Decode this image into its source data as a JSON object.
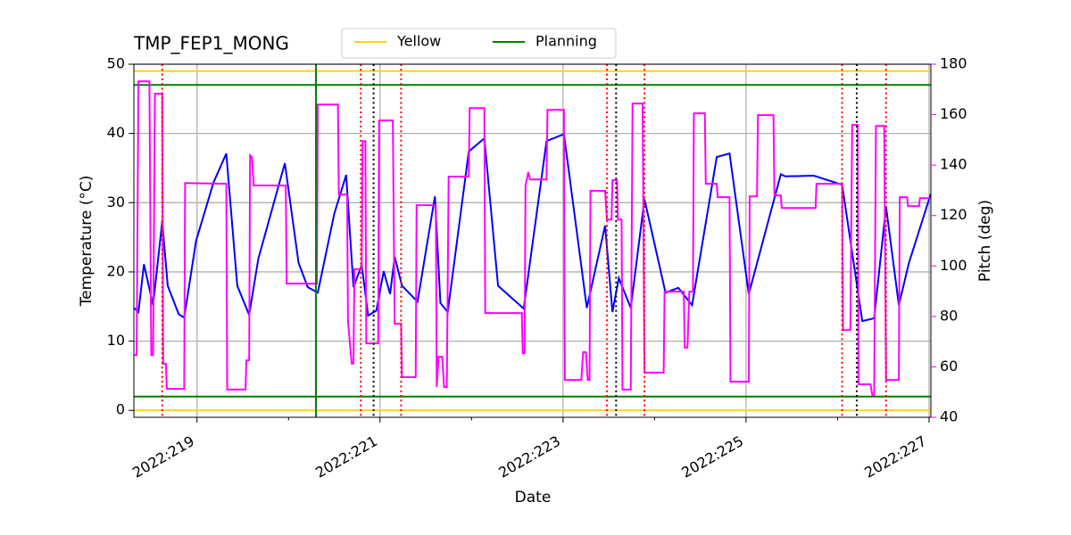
{
  "chart_data": {
    "type": "line",
    "title": "TMP_FEP1_MONG",
    "xlabel": "Date",
    "ylabel": "Temperature (°C)",
    "y2label": "Pitch (deg)",
    "y2color": "#ff00ff",
    "xlim": [
      218.31,
      227.02
    ],
    "ylim": [
      -1,
      50
    ],
    "y2lim": [
      40,
      180
    ],
    "xticks": [
      {
        "value": 219,
        "label": "2022:219"
      },
      {
        "value": 221,
        "label": "2022:221"
      },
      {
        "value": 223,
        "label": "2022:223"
      },
      {
        "value": 225,
        "label": "2022:225"
      },
      {
        "value": 227,
        "label": "2022:227"
      }
    ],
    "xminorticks": [
      220,
      222,
      224,
      226
    ],
    "yticks": [
      0,
      10,
      20,
      30,
      40,
      50
    ],
    "y2ticks": [
      40,
      60,
      80,
      100,
      120,
      140,
      160,
      180
    ],
    "grid": true,
    "legend": "upper center",
    "series": [
      {
        "color": "#0000ff",
        "x": [
          218.31,
          218.36,
          218.42,
          218.52,
          218.62,
          218.68,
          218.8,
          218.86,
          218.99,
          219.18,
          219.32,
          219.44,
          219.57,
          219.67,
          219.96,
          220.11,
          220.21,
          220.32,
          220.5,
          220.63,
          220.71,
          220.8,
          220.87,
          220.96,
          221.04,
          221.11,
          221.16,
          221.24,
          221.41,
          221.6,
          221.66,
          221.74,
          221.97,
          222.14,
          222.29,
          222.57,
          222.82,
          223.01,
          223.26,
          223.46,
          223.54,
          223.61,
          223.74,
          223.89,
          224.12,
          224.26,
          224.41,
          224.68,
          224.82,
          225.03,
          225.38,
          225.43,
          225.74,
          226.05,
          226.23,
          226.27,
          226.4,
          226.53,
          226.67,
          226.78,
          227.02
        ],
        "values": [
          14.8,
          14.2,
          21.1,
          15.2,
          27.3,
          18,
          13.9,
          13.4,
          24.5,
          32.9,
          37.1,
          18,
          13.8,
          21.9,
          35.7,
          21.3,
          17.8,
          17,
          28.4,
          34,
          17.8,
          21,
          13.7,
          14.4,
          20.1,
          16.8,
          22.2,
          18,
          15.7,
          30.9,
          15.5,
          14.2,
          37.4,
          39.3,
          18,
          14.7,
          38.9,
          39.9,
          14.8,
          26.7,
          14.2,
          19.1,
          14.8,
          30.5,
          17,
          17.7,
          15.2,
          36.6,
          37.1,
          16.8,
          34.1,
          33.8,
          33.9,
          32.6,
          16.5,
          12.9,
          13.3,
          29.4,
          15.2,
          21.3,
          31.3
        ]
      },
      {
        "color": "#ff00ff",
        "axis": "y2",
        "x": [
          218.31,
          218.34,
          218.36,
          218.48,
          218.5,
          218.52,
          218.54,
          218.62,
          218.63,
          218.66,
          218.67,
          218.86,
          218.87,
          219.32,
          219.33,
          219.53,
          219.54,
          219.57,
          219.58,
          219.6,
          219.62,
          219.97,
          219.98,
          220.31,
          220.32,
          220.54,
          220.55,
          220.64,
          220.65,
          220.69,
          220.71,
          220.72,
          220.8,
          220.81,
          220.84,
          220.85,
          220.98,
          220.99,
          221.14,
          221.16,
          221.23,
          221.24,
          221.39,
          221.4,
          221.61,
          221.62,
          221.64,
          221.68,
          221.7,
          221.73,
          221.75,
          221.97,
          221.98,
          222.14,
          222.15,
          222.55,
          222.56,
          222.58,
          222.59,
          222.62,
          222.64,
          222.82,
          222.83,
          223.01,
          223.02,
          223.2,
          223.22,
          223.25,
          223.27,
          223.29,
          223.3,
          223.46,
          223.48,
          223.53,
          223.54,
          223.59,
          223.6,
          223.64,
          223.65,
          223.74,
          223.76,
          223.87,
          223.89,
          224.1,
          224.11,
          224.32,
          224.33,
          224.36,
          224.38,
          224.42,
          224.43,
          224.55,
          224.56,
          224.68,
          224.69,
          224.82,
          224.83,
          225.03,
          225.04,
          225.12,
          225.13,
          225.3,
          225.31,
          225.38,
          225.39,
          225.76,
          225.77,
          226.05,
          226.06,
          226.14,
          226.16,
          226.22,
          226.23,
          226.36,
          226.38,
          226.4,
          226.42,
          226.51,
          226.53,
          226.67,
          226.68,
          226.76,
          226.77,
          226.89,
          226.9,
          227.02
        ],
        "values": [
          64.7,
          64.7,
          173.2,
          173.2,
          64.7,
          64.7,
          168.3,
          168.3,
          61.2,
          61.2,
          51.3,
          51.3,
          132.9,
          132.6,
          51,
          51,
          62.6,
          62.6,
          143.9,
          143.2,
          131.9,
          131.9,
          93,
          93,
          164,
          164,
          128.3,
          128.3,
          78.2,
          61.3,
          61.3,
          98.7,
          98.7,
          149.5,
          149.5,
          69.3,
          69.3,
          157.7,
          157.7,
          77.1,
          77.1,
          55.9,
          55.9,
          124.1,
          124.1,
          52,
          64,
          64,
          52,
          52,
          135.4,
          135.4,
          162.6,
          162.6,
          81.3,
          81.3,
          65.4,
          65.4,
          131.9,
          137.2,
          134.3,
          134.3,
          161.9,
          161.9,
          54.8,
          54.8,
          65.8,
          65.8,
          54.8,
          54.8,
          129.8,
          129.8,
          118.4,
          118.4,
          134,
          134,
          118.4,
          118.4,
          51,
          51,
          164.4,
          164.4,
          57.7,
          57.7,
          89.8,
          89.8,
          67.6,
          67.6,
          89.8,
          89.8,
          160.5,
          160.5,
          132.6,
          132.6,
          127.3,
          127.3,
          54.1,
          54.1,
          127.6,
          127.6,
          159.8,
          159.8,
          128,
          128,
          123,
          123,
          132.6,
          132.6,
          74.6,
          74.6,
          155.9,
          155.9,
          53.1,
          53.1,
          48.8,
          48.8,
          155.5,
          155.5,
          54.8,
          54.8,
          127.3,
          127.3,
          123.7,
          123.7,
          126.9,
          126.9
        ]
      }
    ],
    "hlines": [
      {
        "name": "Yellow",
        "color": "#ffd700",
        "values": [
          0,
          49
        ]
      },
      {
        "name": "Planning",
        "color": "#008000",
        "values": [
          2,
          47
        ]
      }
    ],
    "vlines": [
      {
        "color": "#008000",
        "style": "solid",
        "x": [
          220.3
        ]
      },
      {
        "color": "#ff0000",
        "style": "dotted",
        "x": [
          218.62,
          220.79,
          221.23,
          223.48,
          223.89,
          226.05,
          226.53
        ]
      },
      {
        "color": "#000000",
        "style": "dotted",
        "x": [
          220.93,
          223.58,
          226.21
        ]
      }
    ]
  }
}
